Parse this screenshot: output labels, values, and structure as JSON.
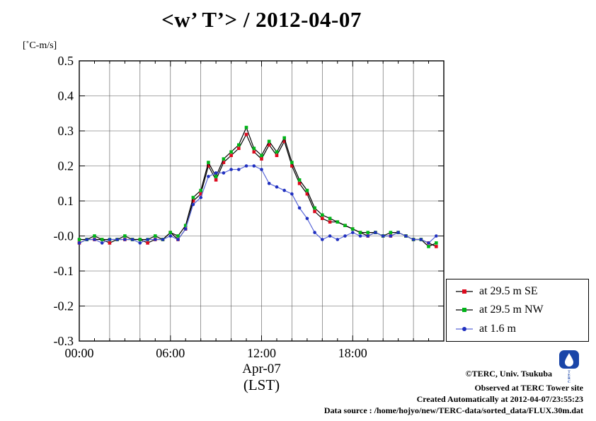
{
  "title": "<w’ T’> / 2012-04-07",
  "y_unit_label": "[˚C-m/s]",
  "x_axis": {
    "label_line1": "Apr-07",
    "label_line2": "(LST)"
  },
  "chart_data": {
    "type": "line",
    "title": "<w’ T’> / 2012-04-07",
    "ylabel": "[˚C-m/s]",
    "xlabel": "Apr-07 (LST)",
    "xlim": [
      0,
      24
    ],
    "ylim": [
      -0.3,
      0.5
    ],
    "grid": true,
    "legend_position": "outside-right-bottom",
    "x_ticks": [
      {
        "hour": 0,
        "label": "00:00"
      },
      {
        "hour": 6,
        "label": "06:00"
      },
      {
        "hour": 12,
        "label": "12:00"
      },
      {
        "hour": 18,
        "label": "18:00"
      }
    ],
    "x_grid_hours": [
      2,
      4,
      6,
      8,
      10,
      12,
      14,
      16,
      18,
      20,
      22
    ],
    "y_ticks": [
      {
        "value": 0.5,
        "label": "0.5"
      },
      {
        "value": 0.4,
        "label": "0.4"
      },
      {
        "value": 0.3,
        "label": "0.3"
      },
      {
        "value": 0.2,
        "label": "0.2"
      },
      {
        "value": 0.1,
        "label": "0.1"
      },
      {
        "value": 0.0,
        "label": "-0.0"
      },
      {
        "value": -0.1,
        "label": "-0.1"
      },
      {
        "value": -0.2,
        "label": "-0.2"
      },
      {
        "value": -0.3,
        "label": "-0.3"
      }
    ],
    "x_hours": [
      0,
      0.5,
      1,
      1.5,
      2,
      2.5,
      3,
      3.5,
      4,
      4.5,
      5,
      5.5,
      6,
      6.5,
      7,
      7.5,
      8,
      8.5,
      9,
      9.5,
      10,
      10.5,
      11,
      11.5,
      12,
      12.5,
      13,
      13.5,
      14,
      14.5,
      15,
      15.5,
      16,
      16.5,
      17,
      17.5,
      18,
      18.5,
      19,
      19.5,
      20,
      20.5,
      21,
      21.5,
      22,
      22.5,
      23,
      23.5
    ],
    "series": [
      {
        "name": "at 29.5 m SE",
        "line_color": "#000000",
        "marker_color": "#dd0a1e",
        "marker": "square",
        "values": [
          -0.02,
          -0.01,
          -0.01,
          -0.01,
          -0.02,
          -0.01,
          -0.01,
          -0.01,
          -0.01,
          -0.02,
          -0.01,
          -0.01,
          0.01,
          -0.01,
          0.02,
          0.1,
          0.12,
          0.2,
          0.16,
          0.21,
          0.23,
          0.25,
          0.29,
          0.24,
          0.22,
          0.26,
          0.23,
          0.27,
          0.2,
          0.15,
          0.12,
          0.07,
          0.05,
          0.04,
          0.04,
          0.03,
          0.02,
          0.01,
          0.0,
          0.01,
          0.0,
          0.0,
          0.01,
          0.0,
          -0.01,
          -0.01,
          -0.02,
          -0.03
        ]
      },
      {
        "name": "at 29.5 m NW",
        "line_color": "#000000",
        "marker_color": "#00b418",
        "marker": "square",
        "values": [
          -0.01,
          -0.01,
          0.0,
          -0.01,
          -0.01,
          -0.01,
          0.0,
          -0.01,
          -0.01,
          -0.01,
          0.0,
          -0.01,
          0.01,
          0.0,
          0.03,
          0.11,
          0.13,
          0.21,
          0.17,
          0.22,
          0.24,
          0.26,
          0.31,
          0.25,
          0.23,
          0.27,
          0.24,
          0.28,
          0.21,
          0.16,
          0.13,
          0.08,
          0.06,
          0.05,
          0.04,
          0.03,
          0.02,
          0.01,
          0.01,
          0.01,
          0.0,
          0.01,
          0.01,
          0.0,
          -0.01,
          -0.01,
          -0.03,
          -0.02
        ]
      },
      {
        "name": "at 1.6 m",
        "line_color": "#5a68d8",
        "marker_color": "#1f2fbf",
        "marker": "circle",
        "values": [
          -0.02,
          -0.01,
          -0.01,
          -0.02,
          -0.01,
          -0.01,
          -0.01,
          -0.01,
          -0.02,
          -0.01,
          -0.01,
          -0.01,
          0.0,
          -0.01,
          0.02,
          0.09,
          0.11,
          0.17,
          0.18,
          0.18,
          0.19,
          0.19,
          0.2,
          0.2,
          0.19,
          0.15,
          0.14,
          0.13,
          0.12,
          0.08,
          0.05,
          0.01,
          -0.01,
          0.0,
          -0.01,
          0.0,
          0.01,
          0.0,
          0.0,
          0.01,
          0.0,
          0.0,
          0.01,
          0.0,
          -0.01,
          -0.01,
          -0.02,
          0.0
        ]
      }
    ]
  },
  "footer": {
    "line1": "©TERC, Univ. Tsukuba",
    "line2": "Observed at TERC Tower site",
    "line3": "Created Automatically at 2012-04-07/23:55:23",
    "line4": "Data source : /home/hojyo/new/TERC-data/sorted_data/FLUX.30m.dat"
  },
  "logo": {
    "letters": [
      "T",
      "E",
      "R",
      "C"
    ]
  }
}
